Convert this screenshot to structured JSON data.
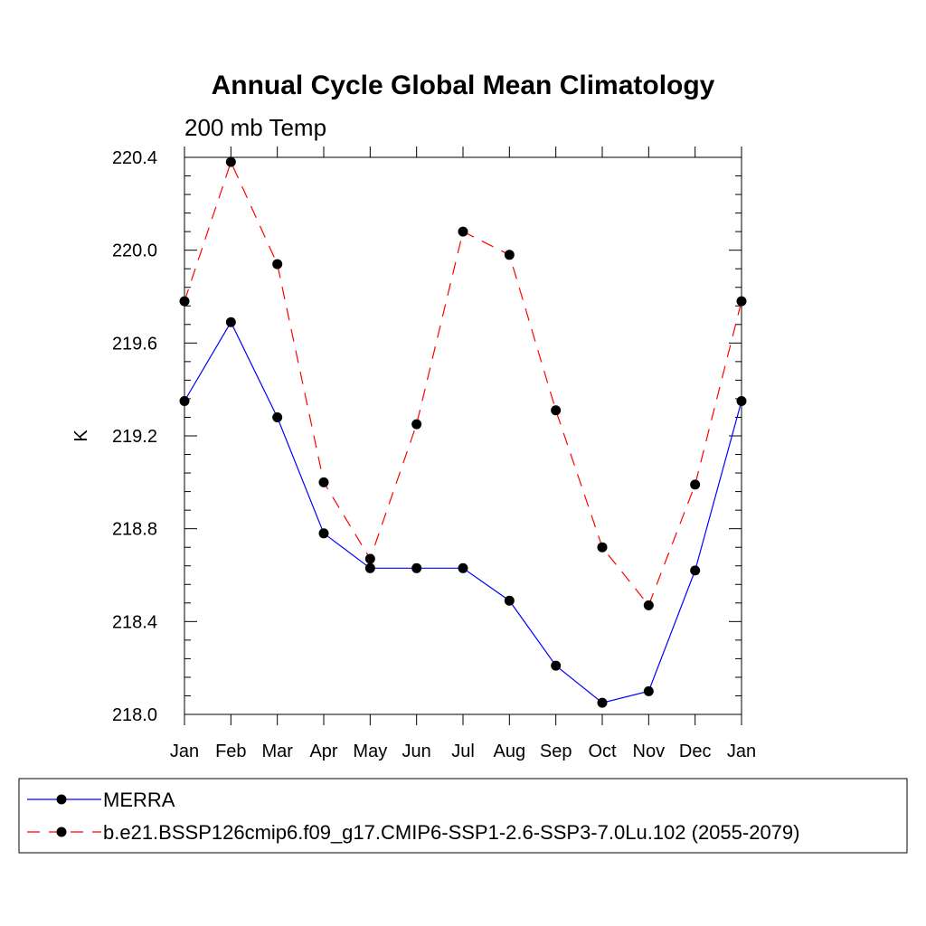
{
  "chart_data": {
    "type": "line",
    "title": "Annual Cycle Global Mean Climatology",
    "subtitle": "200 mb Temp",
    "xlabel": "",
    "ylabel": "K",
    "categories": [
      "Jan",
      "Feb",
      "Mar",
      "Apr",
      "May",
      "Jun",
      "Jul",
      "Aug",
      "Sep",
      "Oct",
      "Nov",
      "Dec",
      "Jan"
    ],
    "ylim": [
      218.0,
      220.45
    ],
    "yticks": [
      218.0,
      218.4,
      218.8,
      219.2,
      219.6,
      220.0,
      220.4
    ],
    "ytick_labels": [
      "218.0",
      "218.4",
      "218.8",
      "219.2",
      "219.6",
      "220.0",
      "220.4"
    ],
    "grid": false,
    "legend_position": "bottom",
    "series": [
      {
        "name": "MERRA",
        "color": "#0000ff",
        "line_style": "solid",
        "marker": "filled-circle",
        "values": [
          219.35,
          219.69,
          219.28,
          218.78,
          218.63,
          218.63,
          218.63,
          218.49,
          218.21,
          218.05,
          218.1,
          218.62,
          219.35
        ]
      },
      {
        "name": "b.e21.BSSP126cmip6.f09_g17.CMIP6-SSP1-2.6-SSP3-7.0Lu.102 (2055-2079)",
        "color": "#ff0000",
        "line_style": "dashed",
        "marker": "filled-circle",
        "values": [
          219.78,
          220.38,
          219.94,
          219.0,
          218.67,
          219.25,
          220.08,
          219.98,
          219.31,
          218.72,
          218.47,
          218.99,
          219.78
        ]
      }
    ]
  }
}
